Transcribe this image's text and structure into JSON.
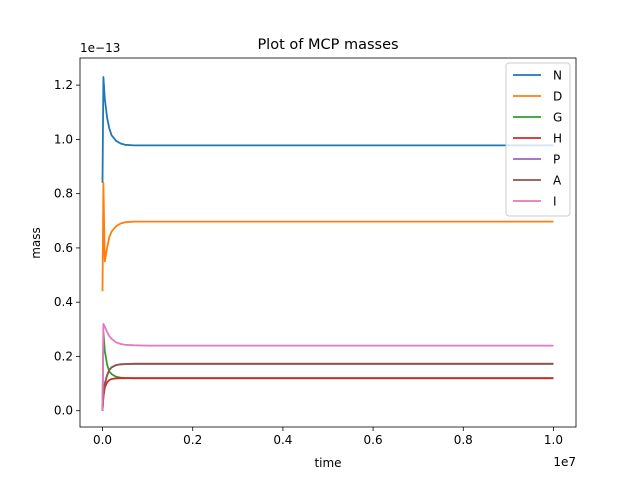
{
  "chart_data": {
    "type": "line",
    "title": "Plot of MCP masses",
    "xlabel": "time",
    "ylabel": "mass",
    "x_offset_label": "1e7",
    "y_offset_label": "1e−13",
    "xlim": [
      -0.05,
      1.05
    ],
    "ylim": [
      -0.06,
      1.3
    ],
    "x_ticks": [
      0.0,
      0.2,
      0.4,
      0.6,
      0.8,
      1.0
    ],
    "x_tick_labels": [
      "0.0",
      "0.2",
      "0.4",
      "0.6",
      "0.8",
      "1.0"
    ],
    "y_ticks": [
      0.0,
      0.2,
      0.4,
      0.6,
      0.8,
      1.0,
      1.2
    ],
    "y_tick_labels": [
      "0.0",
      "0.2",
      "0.4",
      "0.6",
      "0.8",
      "1.0",
      "1.2"
    ],
    "grid": false,
    "legend_position": "top-right",
    "x": [
      0,
      0.002,
      0.005,
      0.01,
      0.015,
      0.02,
      0.03,
      0.04,
      0.05,
      0.07,
      0.1,
      0.15,
      0.2,
      0.4,
      0.6,
      0.8,
      1.0
    ],
    "series": [
      {
        "name": "N",
        "color": "#1f77b4",
        "values": [
          0.84,
          1.23,
          1.15,
          1.08,
          1.04,
          1.015,
          0.995,
          0.985,
          0.98,
          0.978,
          0.978,
          0.978,
          0.978,
          0.978,
          0.978,
          0.978,
          0.978
        ]
      },
      {
        "name": "D",
        "color": "#ff7f0e",
        "values": [
          0.44,
          0.84,
          0.55,
          0.6,
          0.64,
          0.66,
          0.68,
          0.69,
          0.695,
          0.697,
          0.697,
          0.697,
          0.697,
          0.697,
          0.697,
          0.697,
          0.697
        ]
      },
      {
        "name": "G",
        "color": "#2ca02c",
        "values": [
          0.0,
          0.29,
          0.22,
          0.17,
          0.145,
          0.135,
          0.125,
          0.122,
          0.121,
          0.12,
          0.12,
          0.12,
          0.12,
          0.12,
          0.12,
          0.12,
          0.12
        ]
      },
      {
        "name": "H",
        "color": "#d62728",
        "values": [
          0.0,
          0.05,
          0.085,
          0.105,
          0.113,
          0.117,
          0.119,
          0.12,
          0.12,
          0.12,
          0.12,
          0.12,
          0.12,
          0.12,
          0.12,
          0.12,
          0.12
        ]
      },
      {
        "name": "P",
        "color": "#9467bd",
        "values": [
          0.0,
          0.06,
          0.1,
          0.13,
          0.15,
          0.16,
          0.168,
          0.171,
          0.172,
          0.173,
          0.173,
          0.173,
          0.173,
          0.173,
          0.173,
          0.173,
          0.173
        ]
      },
      {
        "name": "A",
        "color": "#8c564b",
        "values": [
          0.0,
          0.06,
          0.1,
          0.13,
          0.15,
          0.16,
          0.168,
          0.171,
          0.172,
          0.173,
          0.173,
          0.173,
          0.173,
          0.173,
          0.173,
          0.173,
          0.173
        ]
      },
      {
        "name": "I",
        "color": "#e377c2",
        "values": [
          0.0,
          0.32,
          0.31,
          0.29,
          0.275,
          0.265,
          0.252,
          0.246,
          0.243,
          0.241,
          0.24,
          0.24,
          0.24,
          0.24,
          0.24,
          0.24,
          0.24
        ]
      }
    ]
  }
}
